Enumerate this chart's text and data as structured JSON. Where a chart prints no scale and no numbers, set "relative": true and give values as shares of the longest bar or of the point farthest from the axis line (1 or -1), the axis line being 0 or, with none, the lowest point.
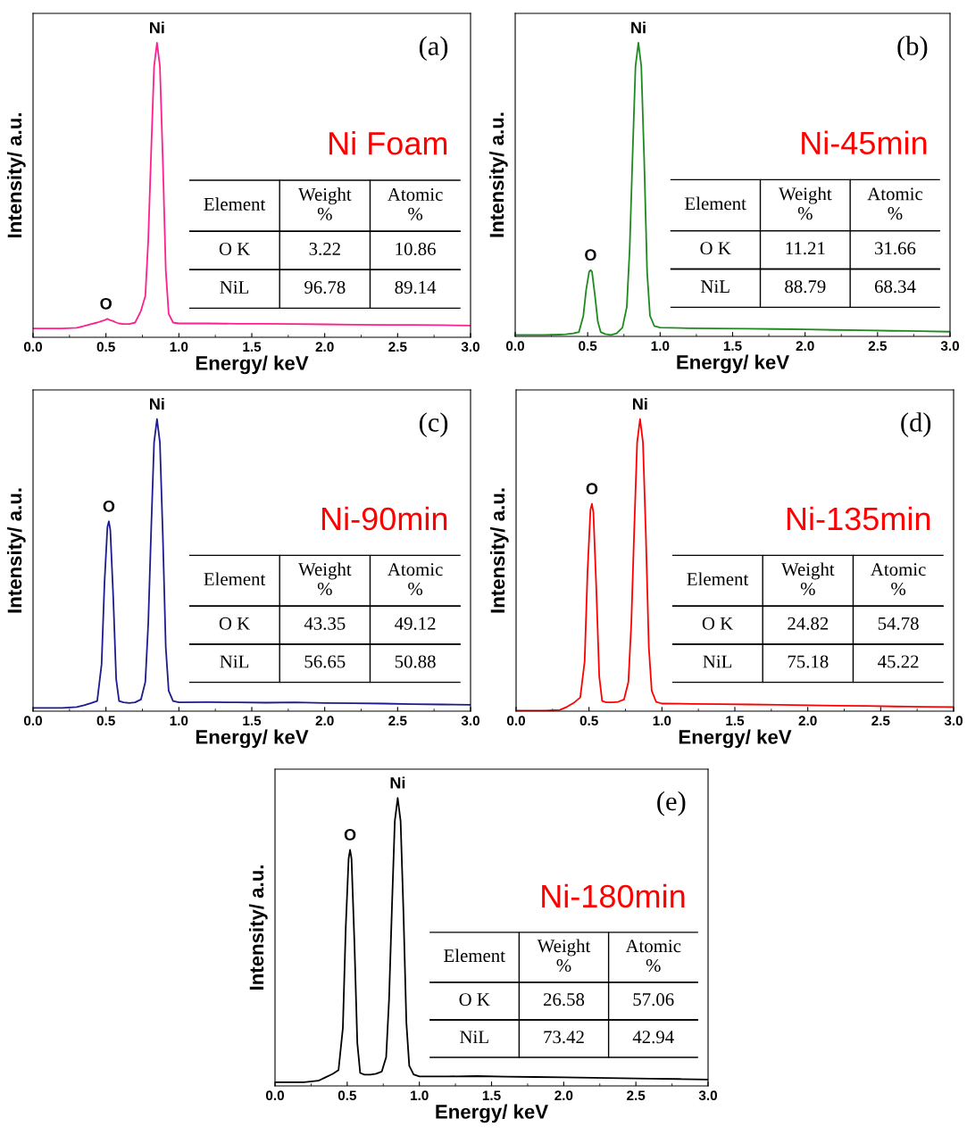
{
  "chart_data": [
    {
      "type": "line",
      "xlabel": "Energy/ keV",
      "ylabel": "Intensity/ a.u.",
      "relative": true,
      "tick_labels": "x",
      "xlim": [
        0,
        3
      ],
      "xticks": [
        {
          "value": 0,
          "label": "0.0"
        },
        0.5,
        {
          "value": 1,
          "label": "1.0"
        },
        1.5,
        {
          "value": 2,
          "label": "2.0"
        },
        2.5,
        {
          "value": 3,
          "label": "3.0"
        }
      ],
      "x": [
        0,
        0.1,
        0.2,
        0.3,
        0.35,
        0.4,
        0.44,
        0.47,
        0.49,
        0.51,
        0.52,
        0.53,
        0.55,
        0.57,
        0.59,
        0.62,
        0.66,
        0.7,
        0.74,
        0.77,
        0.79,
        0.81,
        0.83,
        0.85,
        0.87,
        0.89,
        0.91,
        0.93,
        0.96,
        1.0,
        1.2,
        1.4,
        1.6,
        1.8,
        2.0,
        2.2,
        2.4,
        2.6,
        2.8,
        3.0
      ],
      "series": [
        {
          "color": "#ff1f8e",
          "values": [
            0.03,
            0.03,
            0.03,
            0.032,
            0.038,
            0.045,
            0.05,
            0.055,
            0.058,
            0.063,
            0.06,
            0.058,
            0.055,
            0.05,
            0.047,
            0.045,
            0.045,
            0.05,
            0.09,
            0.14,
            0.33,
            0.63,
            0.92,
            1,
            0.92,
            0.6,
            0.23,
            0.08,
            0.05,
            0.047,
            0.047,
            0.046,
            0.046,
            0.045,
            0.044,
            0.043,
            0.042,
            0.042,
            0.041,
            0.04
          ]
        }
      ],
      "annotations": [
        "(a)",
        "Ni Foam",
        "Element",
        "Weight\n%",
        "Atomic\n%",
        "O K",
        "3.22",
        "10.86",
        "NiL",
        "96.78",
        "89.14",
        {
          "text": "O",
          "x": 0.5,
          "y": 0.063
        },
        {
          "text": "Ni",
          "x": 0.85,
          "y": 1
        }
      ]
    },
    {
      "type": "line",
      "xlabel": "Energy/ keV",
      "ylabel": "Intensity/ a.u.",
      "relative": true,
      "tick_labels": "x",
      "xlim": [
        0,
        3
      ],
      "xticks": [
        {
          "value": 0,
          "label": "0.0"
        },
        0.5,
        {
          "value": 1,
          "label": "1.0"
        },
        1.5,
        {
          "value": 2,
          "label": "2.0"
        },
        2.5,
        {
          "value": 3,
          "label": "3.0"
        }
      ],
      "x": [
        0,
        0.1,
        0.2,
        0.3,
        0.35,
        0.4,
        0.44,
        0.47,
        0.49,
        0.51,
        0.52,
        0.53,
        0.55,
        0.57,
        0.59,
        0.62,
        0.66,
        0.7,
        0.74,
        0.77,
        0.79,
        0.81,
        0.83,
        0.85,
        0.87,
        0.89,
        0.91,
        0.93,
        0.96,
        1.0,
        1.2,
        1.4,
        1.6,
        1.8,
        2.0,
        2.2,
        2.4,
        2.6,
        2.8,
        3.0
      ],
      "series": [
        {
          "color": "#1f8a1f",
          "values": [
            0.005,
            0.005,
            0.005,
            0.006,
            0.007,
            0.01,
            0.015,
            0.07,
            0.16,
            0.22,
            0.226,
            0.22,
            0.14,
            0.05,
            0.015,
            0.008,
            0.005,
            0.01,
            0.03,
            0.1,
            0.3,
            0.62,
            0.92,
            1,
            0.92,
            0.6,
            0.22,
            0.07,
            0.035,
            0.03,
            0.028,
            0.027,
            0.026,
            0.025,
            0.024,
            0.022,
            0.021,
            0.019,
            0.018,
            0.016
          ]
        }
      ],
      "annotations": [
        "(b)",
        "Ni-45min",
        "Element",
        "Weight\n%",
        "Atomic\n%",
        "O K",
        "11.21",
        "31.66",
        "NiL",
        "88.79",
        "68.34",
        {
          "text": "O",
          "x": 0.52,
          "y": 0.226
        },
        {
          "text": "Ni",
          "x": 0.85,
          "y": 1
        }
      ]
    },
    {
      "type": "line",
      "xlabel": "Energy/ keV",
      "ylabel": "Intensity/ a.u.",
      "relative": true,
      "tick_labels": "x",
      "xlim": [
        0,
        3
      ],
      "xticks": [
        {
          "value": 0,
          "label": "0.0"
        },
        0.5,
        {
          "value": 1,
          "label": "1.0"
        },
        1.5,
        {
          "value": 2,
          "label": "2.0"
        },
        2.5,
        {
          "value": 3,
          "label": "3.0"
        }
      ],
      "x": [
        0,
        0.1,
        0.2,
        0.3,
        0.35,
        0.4,
        0.44,
        0.47,
        0.49,
        0.51,
        0.52,
        0.53,
        0.55,
        0.57,
        0.59,
        0.62,
        0.66,
        0.7,
        0.74,
        0.77,
        0.79,
        0.81,
        0.83,
        0.85,
        0.87,
        0.89,
        0.91,
        0.93,
        0.96,
        1.0,
        1.2,
        1.4,
        1.6,
        1.8,
        2.0,
        2.2,
        2.4,
        2.6,
        2.8,
        3.0
      ],
      "series": [
        {
          "color": "#1c1c8e",
          "values": [
            0.011,
            0.011,
            0.011,
            0.014,
            0.02,
            0.028,
            0.035,
            0.16,
            0.44,
            0.63,
            0.65,
            0.62,
            0.39,
            0.11,
            0.035,
            0.03,
            0.028,
            0.03,
            0.04,
            0.1,
            0.3,
            0.62,
            0.92,
            1,
            0.92,
            0.6,
            0.22,
            0.07,
            0.035,
            0.03,
            0.031,
            0.03,
            0.029,
            0.03,
            0.028,
            0.027,
            0.026,
            0.024,
            0.023,
            0.022
          ]
        }
      ],
      "annotations": [
        "(c)",
        "Ni-90min",
        "Element",
        "Weight\n%",
        "Atomic\n%",
        "O K",
        "43.35",
        "49.12",
        "NiL",
        "56.65",
        "50.88",
        {
          "text": "O",
          "x": 0.52,
          "y": 0.65
        },
        {
          "text": "Ni",
          "x": 0.85,
          "y": 1
        }
      ]
    },
    {
      "type": "line",
      "xlabel": "Energy/ keV",
      "ylabel": "Intensity/ a.u.",
      "relative": true,
      "tick_labels": "x",
      "xlim": [
        0,
        3
      ],
      "xticks": [
        {
          "value": 0,
          "label": "0.0"
        },
        0.5,
        {
          "value": 1,
          "label": "1.0"
        },
        1.5,
        {
          "value": 2,
          "label": "2.0"
        },
        2.5,
        {
          "value": 3,
          "label": "3.0"
        }
      ],
      "x": [
        0,
        0.1,
        0.2,
        0.3,
        0.35,
        0.4,
        0.44,
        0.47,
        0.49,
        0.51,
        0.52,
        0.53,
        0.55,
        0.57,
        0.59,
        0.62,
        0.66,
        0.7,
        0.74,
        0.77,
        0.79,
        0.81,
        0.83,
        0.85,
        0.87,
        0.89,
        0.91,
        0.93,
        0.96,
        1.0,
        1.2,
        1.4,
        1.6,
        1.8,
        2.0,
        2.2,
        2.4,
        2.6,
        2.8,
        3.0
      ],
      "series": [
        {
          "color": "#ff0000",
          "values": [
            0.002,
            0.002,
            0.002,
            0.004,
            0.015,
            0.03,
            0.047,
            0.17,
            0.48,
            0.69,
            0.71,
            0.68,
            0.42,
            0.12,
            0.035,
            0.03,
            0.03,
            0.032,
            0.04,
            0.1,
            0.3,
            0.62,
            0.92,
            1,
            0.92,
            0.6,
            0.22,
            0.07,
            0.032,
            0.026,
            0.025,
            0.024,
            0.023,
            0.022,
            0.02,
            0.019,
            0.018,
            0.016,
            0.015,
            0.014
          ]
        }
      ],
      "annotations": [
        "(d)",
        "Ni-135min",
        "Element",
        "Weight\n%",
        "Atomic\n%",
        "O K",
        "24.82",
        "54.78",
        "NiL",
        "75.18",
        "45.22",
        {
          "text": "O",
          "x": 0.52,
          "y": 0.71
        },
        {
          "text": "Ni",
          "x": 0.85,
          "y": 1
        }
      ]
    },
    {
      "type": "line",
      "xlabel": "Energy/ keV",
      "ylabel": "Intensity/ a.u.",
      "relative": true,
      "tick_labels": "x",
      "xlim": [
        0,
        3
      ],
      "xticks": [
        {
          "value": 0,
          "label": "0.0"
        },
        0.5,
        {
          "value": 1,
          "label": "1.0"
        },
        1.5,
        {
          "value": 2,
          "label": "2.0"
        },
        2.5,
        {
          "value": 3,
          "label": "3.0"
        }
      ],
      "x": [
        0,
        0.1,
        0.2,
        0.3,
        0.35,
        0.4,
        0.44,
        0.47,
        0.49,
        0.51,
        0.52,
        0.53,
        0.55,
        0.57,
        0.59,
        0.62,
        0.66,
        0.7,
        0.74,
        0.77,
        0.79,
        0.81,
        0.83,
        0.85,
        0.87,
        0.89,
        0.91,
        0.93,
        0.96,
        1.0,
        1.2,
        1.4,
        1.6,
        1.8,
        2.0,
        2.2,
        2.4,
        2.6,
        2.8,
        3.0
      ],
      "series": [
        {
          "color": "#000000",
          "values": [
            0.013,
            0.013,
            0.013,
            0.018,
            0.03,
            0.042,
            0.055,
            0.2,
            0.55,
            0.79,
            0.82,
            0.79,
            0.5,
            0.15,
            0.045,
            0.039,
            0.039,
            0.042,
            0.05,
            0.1,
            0.3,
            0.62,
            0.92,
            1,
            0.92,
            0.6,
            0.22,
            0.07,
            0.04,
            0.033,
            0.033,
            0.034,
            0.032,
            0.031,
            0.03,
            0.028,
            0.027,
            0.025,
            0.024,
            0.022
          ]
        }
      ],
      "annotations": [
        "(e)",
        "Ni-180min",
        "Element",
        "Weight\n%",
        "Atomic\n%",
        "O K",
        "26.58",
        "57.06",
        "NiL",
        "73.42",
        "42.94",
        {
          "text": "O",
          "x": 0.52,
          "y": 0.82
        },
        {
          "text": "Ni",
          "x": 0.85,
          "y": 1
        }
      ]
    }
  ]
}
